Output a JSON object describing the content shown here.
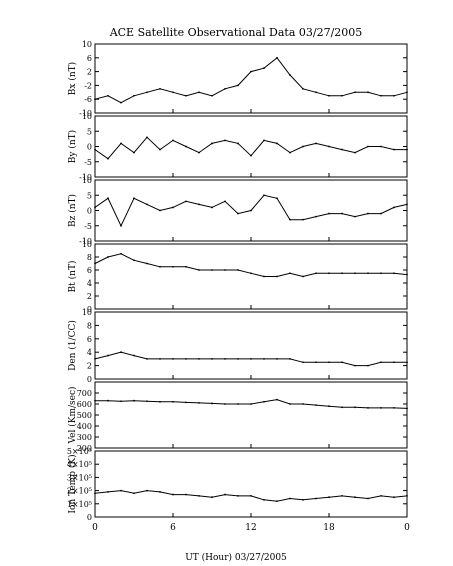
{
  "title": "ACE Satellite Observational Data   03/27/2005",
  "xlabel": "UT (Hour)   03/27/2005",
  "x_ticks": [
    "0",
    "6",
    "12",
    "18",
    "0"
  ],
  "chart_data": [
    {
      "type": "line",
      "ylabel": "Bx (nT)",
      "ylim": [
        -10,
        10
      ],
      "y_ticks": [
        {
          "v": 10,
          "label": "10"
        },
        {
          "v": 6,
          "label": "6"
        },
        {
          "v": 2,
          "label": "2"
        },
        {
          "v": -2,
          "label": "-2"
        },
        {
          "v": -6,
          "label": "-6"
        },
        {
          "v": -10,
          "label": "-10"
        }
      ],
      "x_hours": [
        0,
        1,
        2,
        3,
        4,
        5,
        6,
        7,
        8,
        9,
        10,
        11,
        12,
        13,
        14,
        15,
        16,
        17,
        18,
        19,
        20,
        21,
        22,
        23,
        24
      ],
      "values": [
        -6,
        -5,
        -7,
        -5,
        -4,
        -3,
        -4,
        -5,
        -4,
        -5,
        -3,
        -2,
        2,
        3,
        6,
        1,
        -3,
        -4,
        -5,
        -5,
        -4,
        -4,
        -5,
        -5,
        -4
      ]
    },
    {
      "type": "line",
      "ylabel": "By (nT)",
      "ylim": [
        -10,
        10
      ],
      "y_ticks": [
        {
          "v": 10,
          "label": "10"
        },
        {
          "v": 5,
          "label": "5"
        },
        {
          "v": 0,
          "label": "0"
        },
        {
          "v": -5,
          "label": "-5"
        },
        {
          "v": -10,
          "label": "-10"
        }
      ],
      "x_hours": [
        0,
        1,
        2,
        3,
        4,
        5,
        6,
        7,
        8,
        9,
        10,
        11,
        12,
        13,
        14,
        15,
        16,
        17,
        18,
        19,
        20,
        21,
        22,
        23,
        24
      ],
      "values": [
        -1,
        -4,
        1,
        -2,
        3,
        -1,
        2,
        0,
        -2,
        1,
        2,
        1,
        -3,
        2,
        1,
        -2,
        0,
        1,
        0,
        -1,
        -2,
        0,
        0,
        -1,
        -1
      ]
    },
    {
      "type": "line",
      "ylabel": "Bz (nT)",
      "ylim": [
        -10,
        10
      ],
      "y_ticks": [
        {
          "v": 10,
          "label": "10"
        },
        {
          "v": 5,
          "label": "5"
        },
        {
          "v": 0,
          "label": "0"
        },
        {
          "v": -5,
          "label": "-5"
        },
        {
          "v": -10,
          "label": "-10"
        }
      ],
      "x_hours": [
        0,
        1,
        2,
        3,
        4,
        5,
        6,
        7,
        8,
        9,
        10,
        11,
        12,
        13,
        14,
        15,
        16,
        17,
        18,
        19,
        20,
        21,
        22,
        23,
        24
      ],
      "values": [
        1,
        4,
        -5,
        4,
        2,
        0,
        1,
        3,
        2,
        1,
        3,
        -1,
        0,
        5,
        4,
        -3,
        -3,
        -2,
        -1,
        -1,
        -2,
        -1,
        -1,
        1,
        2
      ]
    },
    {
      "type": "line",
      "ylabel": "Bt (nT)",
      "ylim": [
        0,
        10
      ],
      "y_ticks": [
        {
          "v": 10,
          "label": "10"
        },
        {
          "v": 8,
          "label": "8"
        },
        {
          "v": 6,
          "label": "6"
        },
        {
          "v": 4,
          "label": "4"
        },
        {
          "v": 2,
          "label": "2"
        },
        {
          "v": 0,
          "label": "0"
        }
      ],
      "x_hours": [
        0,
        1,
        2,
        3,
        4,
        5,
        6,
        7,
        8,
        9,
        10,
        11,
        12,
        13,
        14,
        15,
        16,
        17,
        18,
        19,
        20,
        21,
        22,
        23,
        24
      ],
      "values": [
        7,
        8,
        8.5,
        7.5,
        7,
        6.5,
        6.5,
        6.5,
        6,
        6,
        6,
        6,
        5.5,
        5,
        5,
        5.5,
        5,
        5.5,
        5.5,
        5.5,
        5.5,
        5.5,
        5.5,
        5.5,
        5.3
      ]
    },
    {
      "type": "line",
      "ylabel": "Den (1/CC)",
      "ylim": [
        0,
        10
      ],
      "y_ticks": [
        {
          "v": 10,
          "label": "10"
        },
        {
          "v": 8,
          "label": "8"
        },
        {
          "v": 6,
          "label": "6"
        },
        {
          "v": 4,
          "label": "4"
        },
        {
          "v": 2,
          "label": "2"
        },
        {
          "v": 0,
          "label": "0"
        }
      ],
      "x_hours": [
        0,
        1,
        2,
        3,
        4,
        5,
        6,
        7,
        8,
        9,
        10,
        11,
        12,
        13,
        14,
        15,
        16,
        17,
        18,
        19,
        20,
        21,
        22,
        23,
        24
      ],
      "values": [
        3,
        3.5,
        4,
        3.5,
        3,
        3,
        3,
        3,
        3,
        3,
        3,
        3,
        3,
        3,
        3,
        3,
        2.5,
        2.5,
        2.5,
        2.5,
        2,
        2,
        2.5,
        2.5,
        2.5
      ]
    },
    {
      "type": "line",
      "ylabel": "Vel (Km/sec)",
      "ylim": [
        200,
        800
      ],
      "y_ticks": [
        {
          "v": 700,
          "label": "700"
        },
        {
          "v": 600,
          "label": "600"
        },
        {
          "v": 500,
          "label": "500"
        },
        {
          "v": 400,
          "label": "400"
        },
        {
          "v": 300,
          "label": "300"
        },
        {
          "v": 200,
          "label": "200"
        }
      ],
      "x_hours": [
        0,
        1,
        2,
        3,
        4,
        5,
        6,
        7,
        8,
        9,
        10,
        11,
        12,
        13,
        14,
        15,
        16,
        17,
        18,
        19,
        20,
        21,
        22,
        23,
        24
      ],
      "values": [
        630,
        630,
        625,
        630,
        625,
        620,
        620,
        615,
        610,
        605,
        600,
        600,
        600,
        620,
        640,
        600,
        600,
        590,
        580,
        570,
        570,
        565,
        565,
        565,
        560
      ]
    },
    {
      "type": "line",
      "ylabel": "Ion Temp (K)",
      "ylim": [
        0,
        500000
      ],
      "y_ticks": [
        {
          "v": 500000,
          "label": "5×10⁵"
        },
        {
          "v": 400000,
          "label": "4×10⁵"
        },
        {
          "v": 300000,
          "label": "3×10⁵"
        },
        {
          "v": 200000,
          "label": "2×10⁵"
        },
        {
          "v": 100000,
          "label": "1×10⁵"
        },
        {
          "v": 0,
          "label": "0"
        }
      ],
      "x_hours": [
        0,
        1,
        2,
        3,
        4,
        5,
        6,
        7,
        8,
        9,
        10,
        11,
        12,
        13,
        14,
        15,
        16,
        17,
        18,
        19,
        20,
        21,
        22,
        23,
        24
      ],
      "values": [
        180000,
        190000,
        200000,
        180000,
        200000,
        190000,
        170000,
        170000,
        160000,
        150000,
        170000,
        160000,
        160000,
        130000,
        120000,
        140000,
        130000,
        140000,
        150000,
        160000,
        150000,
        140000,
        160000,
        150000,
        160000
      ]
    }
  ]
}
